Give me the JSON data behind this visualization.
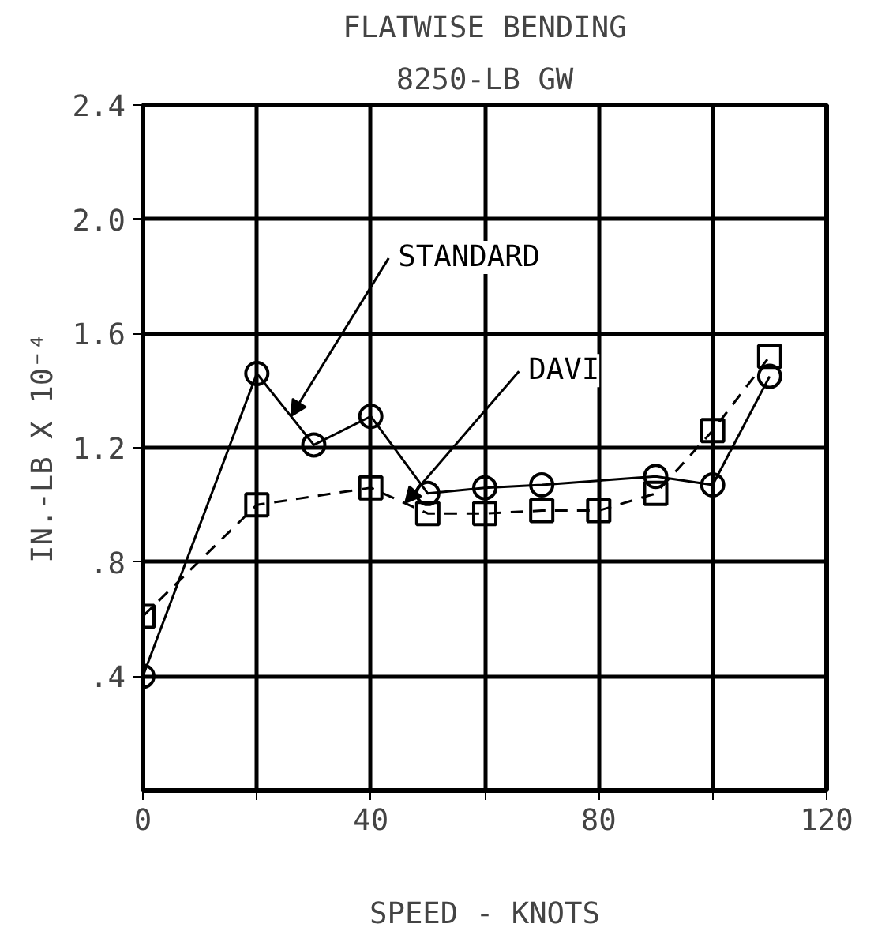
{
  "chart_data": {
    "type": "line",
    "title": "FLATWISE BENDING",
    "subtitle": "8250-LB GW",
    "xlabel": "SPEED - KNOTS",
    "ylabel": "IN.-LB X 10⁻⁴",
    "x": [
      0,
      20,
      30,
      40,
      50,
      60,
      70,
      90,
      100,
      110
    ],
    "series": [
      {
        "name": "STANDARD",
        "color": "#000000",
        "marker": "circle",
        "line_style": "solid",
        "values": [
          0.4,
          1.46,
          1.21,
          1.31,
          1.04,
          1.06,
          1.07,
          1.1,
          1.07,
          1.45
        ]
      },
      {
        "name": "DAVI",
        "color": "#000000",
        "marker": "square",
        "line_style": "dashed",
        "x": [
          0,
          20,
          40,
          50,
          60,
          70,
          80,
          90,
          100,
          110
        ],
        "values": [
          0.61,
          1.0,
          1.06,
          0.97,
          0.97,
          0.98,
          0.98,
          1.04,
          1.26,
          1.52
        ]
      }
    ],
    "xlim": [
      0,
      120
    ],
    "ylim": [
      0,
      2.4
    ],
    "xticks": [
      0,
      {
        "value": 20,
        "label": null
      },
      40,
      {
        "value": 60,
        "label": null
      },
      80,
      {
        "value": 100,
        "label": null
      },
      120
    ],
    "yticks": [
      {
        "value": 0.4,
        "label": ".4"
      },
      {
        "value": 0.8,
        "label": ".8"
      },
      {
        "value": 1.2,
        "label": "1.2"
      },
      {
        "value": 1.6,
        "label": "1.6"
      },
      {
        "value": 2.0,
        "label": "2.0"
      },
      {
        "value": 2.4,
        "label": "2.4"
      }
    ],
    "grid": true
  }
}
